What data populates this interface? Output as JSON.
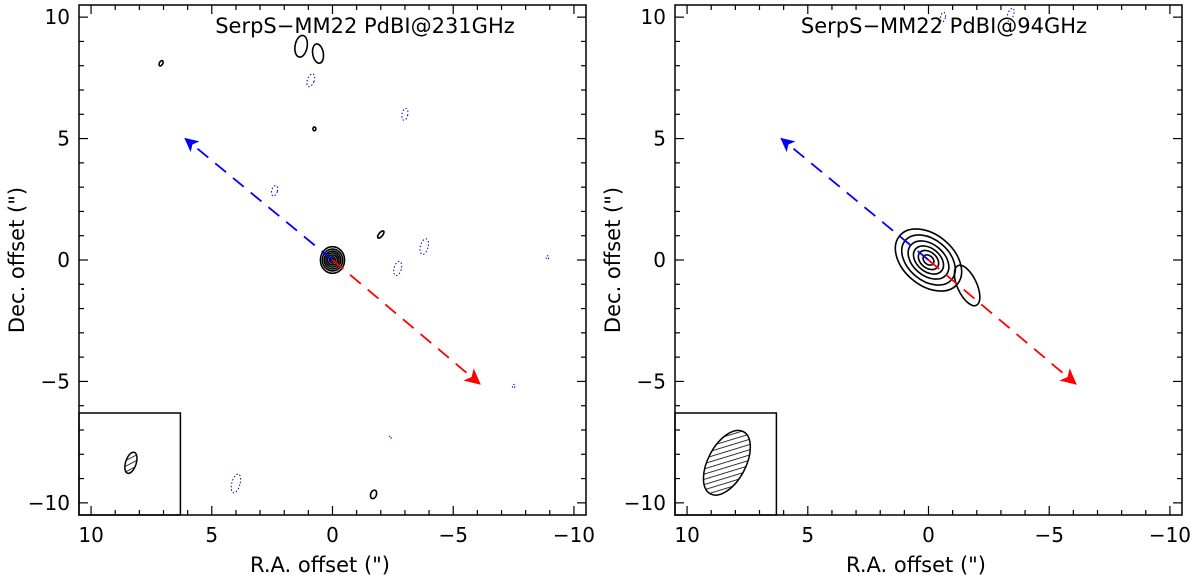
{
  "chart_data": [
    {
      "type": "contour",
      "title": "SerpS−MM22 PdBI@231GHz",
      "xlabel": "R.A. offset (\")",
      "ylabel": "Dec. offset (\")",
      "xlim": [
        10.5,
        -10.5
      ],
      "ylim": [
        -10.5,
        10.5
      ],
      "xticks": [
        10,
        5,
        0,
        -5,
        -10
      ],
      "xtick_labels": [
        "10",
        "5",
        "0",
        "−5",
        "−10"
      ],
      "yticks": [
        10,
        5,
        0,
        -5,
        -10
      ],
      "ytick_labels": [
        "10",
        "5",
        "0",
        "−5",
        "−10"
      ],
      "source": {
        "x": 0.0,
        "y": 0.0,
        "n_levels": 7,
        "semi_major": [
          0.55,
          0.45,
          0.37,
          0.29,
          0.21,
          0.13,
          0.06
        ],
        "semi_minor": [
          0.5,
          0.42,
          0.34,
          0.27,
          0.2,
          0.12,
          0.05
        ],
        "pa": 0
      },
      "positive_features": [
        {
          "x": 7.1,
          "y": 8.1,
          "a": 0.12,
          "b": 0.07,
          "pa": 30
        },
        {
          "x": 1.3,
          "y": 8.8,
          "a": 0.45,
          "b": 0.25,
          "pa": 10
        },
        {
          "x": 0.6,
          "y": 8.5,
          "a": 0.4,
          "b": 0.22,
          "pa": -10
        },
        {
          "x": 0.75,
          "y": 5.4,
          "a": 0.08,
          "b": 0.06,
          "pa": 0
        },
        {
          "x": -2.0,
          "y": 1.05,
          "a": 0.18,
          "b": 0.08,
          "pa": 40
        },
        {
          "x": -1.7,
          "y": -9.65,
          "a": 0.18,
          "b": 0.12,
          "pa": 20
        }
      ],
      "negative_features": [
        {
          "x": 0.9,
          "y": 7.4,
          "a": 0.28,
          "b": 0.14,
          "pa": 20
        },
        {
          "x": -3.0,
          "y": 6.0,
          "a": 0.25,
          "b": 0.12,
          "pa": 10
        },
        {
          "x": 2.4,
          "y": 2.85,
          "a": 0.22,
          "b": 0.12,
          "pa": 15
        },
        {
          "x": -3.8,
          "y": 0.55,
          "a": 0.33,
          "b": 0.16,
          "pa": 15
        },
        {
          "x": -2.7,
          "y": -0.35,
          "a": 0.3,
          "b": 0.15,
          "pa": 15
        },
        {
          "x": -8.9,
          "y": 0.1,
          "a": 0.08,
          "b": 0.05,
          "pa": 0
        },
        {
          "x": -7.5,
          "y": -5.2,
          "a": 0.08,
          "b": 0.05,
          "pa": 0
        },
        {
          "x": -2.4,
          "y": -7.3,
          "a": 0.05,
          "b": 0.04,
          "pa": 0
        },
        {
          "x": 4.0,
          "y": -9.2,
          "a": 0.4,
          "b": 0.17,
          "pa": 15
        }
      ],
      "outflow": {
        "blue": {
          "from": [
            0.0,
            0.0
          ],
          "to": [
            6.1,
            5.0
          ],
          "color": "#0000ff"
        },
        "red": {
          "from": [
            0.0,
            0.0
          ],
          "to": [
            -6.1,
            -5.1
          ],
          "color": "#ff0000"
        }
      },
      "beam": {
        "x": 8.35,
        "y": -8.35,
        "a": 0.45,
        "b": 0.22,
        "pa": 18
      },
      "beam_box": {
        "x0": 10.5,
        "x1": 6.3,
        "y0": -10.5,
        "y1": -6.3
      }
    },
    {
      "type": "contour",
      "title": "SerpS−MM22 PdBI@94GHz",
      "xlabel": "R.A. offset (\")",
      "ylabel": "Dec. offset (\")",
      "xlim": [
        10.5,
        -10.5
      ],
      "ylim": [
        -10.5,
        10.5
      ],
      "xticks": [
        10,
        5,
        0,
        -5,
        -10
      ],
      "xtick_labels": [
        "10",
        "5",
        "0",
        "−5",
        "−10"
      ],
      "yticks": [
        10,
        5,
        0,
        -5,
        -10
      ],
      "ytick_labels": [
        "10",
        "5",
        "0",
        "−5",
        "−10"
      ],
      "source": {
        "x": 0.0,
        "y": 0.0,
        "n_levels": 6,
        "semi_major": [
          1.55,
          1.25,
          0.95,
          0.7,
          0.47,
          0.25
        ],
        "semi_minor": [
          1.05,
          0.85,
          0.65,
          0.48,
          0.33,
          0.18
        ],
        "pa": -50
      },
      "extension": {
        "x": -1.6,
        "y": -1.05,
        "a": 0.9,
        "b": 0.4,
        "pa": -25
      },
      "positive_features": [],
      "negative_features": [
        {
          "x": -0.6,
          "y": 10.0,
          "a": 0.2,
          "b": 0.1,
          "pa": 10
        },
        {
          "x": -3.4,
          "y": 10.1,
          "a": 0.28,
          "b": 0.12,
          "pa": 20
        }
      ],
      "outflow": {
        "blue": {
          "from": [
            0.0,
            0.0
          ],
          "to": [
            6.1,
            5.0
          ],
          "color": "#0000ff"
        },
        "red": {
          "from": [
            0.0,
            0.0
          ],
          "to": [
            -6.1,
            -5.1
          ],
          "color": "#ff0000"
        }
      },
      "beam": {
        "x": 8.35,
        "y": -8.35,
        "a": 1.45,
        "b": 0.78,
        "pa": 28
      },
      "beam_box": {
        "x0": 10.5,
        "x1": 6.3,
        "y0": -10.5,
        "y1": -6.3
      }
    }
  ]
}
